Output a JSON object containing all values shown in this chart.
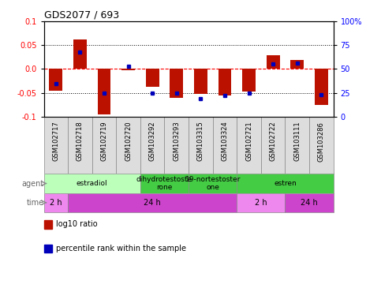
{
  "title": "GDS2077 / 693",
  "samples": [
    "GSM102717",
    "GSM102718",
    "GSM102719",
    "GSM102720",
    "GSM103292",
    "GSM103293",
    "GSM103315",
    "GSM103324",
    "GSM102721",
    "GSM102722",
    "GSM103111",
    "GSM103286"
  ],
  "log10_ratio": [
    -0.045,
    0.062,
    -0.095,
    -0.002,
    -0.038,
    -0.06,
    -0.052,
    -0.055,
    -0.048,
    0.028,
    0.018,
    -0.075
  ],
  "percentile_rank": [
    35,
    68,
    25,
    53,
    25,
    25,
    19,
    22,
    25,
    55,
    56,
    23
  ],
  "ylim": [
    -0.1,
    0.1
  ],
  "yticks_left": [
    -0.1,
    -0.05,
    0.0,
    0.05,
    0.1
  ],
  "yticks_right": [
    0,
    25,
    50,
    75,
    100
  ],
  "bar_color": "#bb1100",
  "dot_color": "#0000bb",
  "agent_groups": [
    {
      "label": "estradiol",
      "start": 0,
      "end": 4,
      "color": "#bbffbb"
    },
    {
      "label": "dihydrotestoste\nrone",
      "start": 4,
      "end": 6,
      "color": "#44cc44"
    },
    {
      "label": "19-nortestoster\none",
      "start": 6,
      "end": 8,
      "color": "#44cc44"
    },
    {
      "label": "estren",
      "start": 8,
      "end": 12,
      "color": "#44cc44"
    }
  ],
  "time_groups": [
    {
      "label": "2 h",
      "start": 0,
      "end": 1,
      "color": "#ee88ee"
    },
    {
      "label": "24 h",
      "start": 1,
      "end": 8,
      "color": "#cc44cc"
    },
    {
      "label": "2 h",
      "start": 8,
      "end": 10,
      "color": "#ee88ee"
    },
    {
      "label": "24 h",
      "start": 10,
      "end": 12,
      "color": "#cc44cc"
    }
  ],
  "legend_red_label": "log10 ratio",
  "legend_blue_label": "percentile rank within the sample",
  "legend_red_color": "#bb1100",
  "legend_blue_color": "#0000bb"
}
